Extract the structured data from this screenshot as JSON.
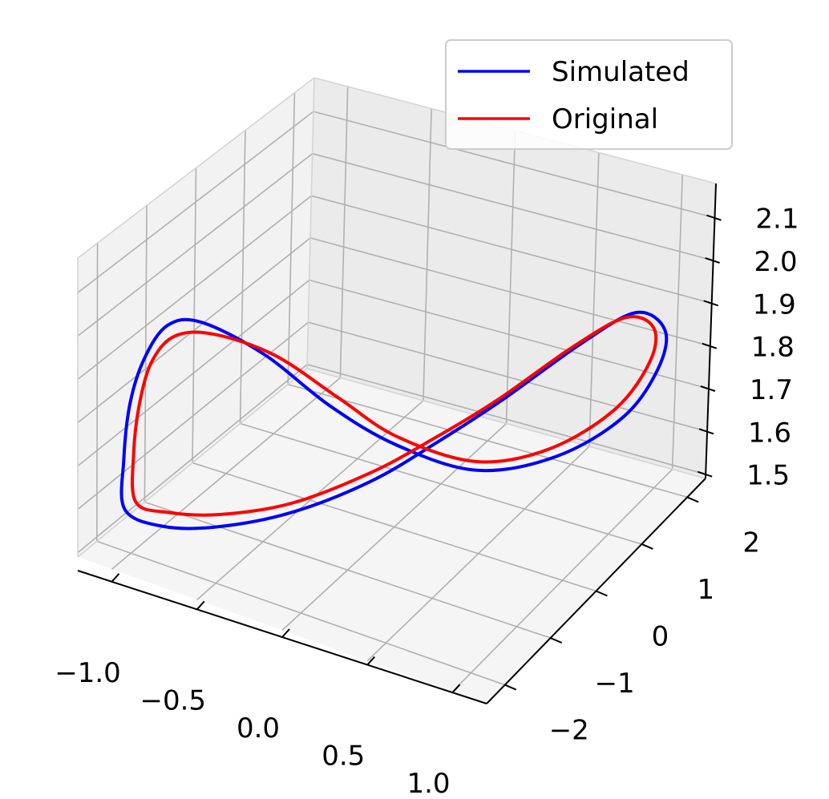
{
  "chart_data": {
    "type": "line",
    "projection": "3d",
    "title": "",
    "xlabel": "",
    "ylabel": "",
    "zlabel": "",
    "grid": true,
    "legend_position": "top-right",
    "x_ticks": [
      "−1.0",
      "−0.5",
      "0.0",
      "0.5",
      "1.0"
    ],
    "y_ticks": [
      "−2",
      "−1",
      "0",
      "1",
      "2"
    ],
    "z_ticks": [
      "1.5",
      "1.6",
      "1.7",
      "1.8",
      "1.9",
      "2.0",
      "2.1"
    ],
    "xlim": [
      -1.2,
      1.2
    ],
    "ylim": [
      -2.4,
      2.4
    ],
    "zlim": [
      1.49,
      2.18
    ],
    "series": [
      {
        "name": "Simulated",
        "color": "#0000ff",
        "points": [
          [
            -1.05,
            -1.95,
            1.58
          ],
          [
            -1.0,
            -2.15,
            1.72
          ],
          [
            -0.95,
            -2.2,
            1.86
          ],
          [
            -0.88,
            -2.15,
            1.97
          ],
          [
            -0.8,
            -1.95,
            2.04
          ],
          [
            -0.7,
            -1.6,
            2.03
          ],
          [
            -0.5,
            -1.0,
            1.93
          ],
          [
            -0.25,
            -0.5,
            1.8
          ],
          [
            0.0,
            0.0,
            1.7
          ],
          [
            0.3,
            0.6,
            1.63
          ],
          [
            0.6,
            1.2,
            1.65
          ],
          [
            0.85,
            1.7,
            1.73
          ],
          [
            0.97,
            2.0,
            1.83
          ],
          [
            1.0,
            2.05,
            1.92
          ],
          [
            0.9,
            1.8,
            1.97
          ],
          [
            0.7,
            1.35,
            1.91
          ],
          [
            0.4,
            0.8,
            1.79
          ],
          [
            0.15,
            0.3,
            1.7
          ],
          [
            -0.1,
            -0.2,
            1.62
          ],
          [
            -0.4,
            -0.8,
            1.56
          ],
          [
            -0.7,
            -1.3,
            1.53
          ],
          [
            -0.9,
            -1.7,
            1.54
          ],
          [
            -1.05,
            -1.95,
            1.58
          ]
        ]
      },
      {
        "name": "Original",
        "color": "#ff0000",
        "points": [
          [
            -1.0,
            -1.9,
            1.6
          ],
          [
            -0.97,
            -2.05,
            1.73
          ],
          [
            -0.92,
            -2.1,
            1.86
          ],
          [
            -0.86,
            -2.05,
            1.96
          ],
          [
            -0.78,
            -1.85,
            2.01
          ],
          [
            -0.65,
            -1.5,
            2.0
          ],
          [
            -0.45,
            -0.95,
            1.93
          ],
          [
            -0.22,
            -0.45,
            1.82
          ],
          [
            0.0,
            0.0,
            1.72
          ],
          [
            0.3,
            0.6,
            1.65
          ],
          [
            0.58,
            1.15,
            1.67
          ],
          [
            0.82,
            1.65,
            1.75
          ],
          [
            0.94,
            1.95,
            1.85
          ],
          [
            0.96,
            1.95,
            1.93
          ],
          [
            0.86,
            1.72,
            1.96
          ],
          [
            0.66,
            1.3,
            1.9
          ],
          [
            0.38,
            0.75,
            1.79
          ],
          [
            0.14,
            0.28,
            1.71
          ],
          [
            -0.1,
            -0.2,
            1.64
          ],
          [
            -0.4,
            -0.78,
            1.58
          ],
          [
            -0.68,
            -1.28,
            1.56
          ],
          [
            -0.88,
            -1.65,
            1.57
          ],
          [
            -1.0,
            -1.9,
            1.6
          ]
        ]
      }
    ]
  }
}
